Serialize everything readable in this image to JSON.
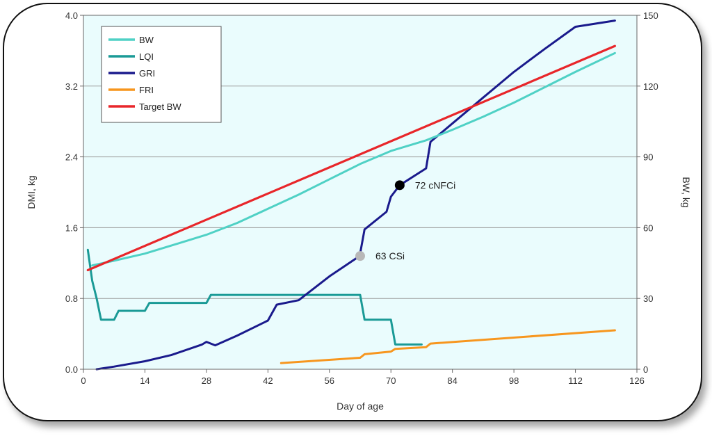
{
  "chart_data": {
    "type": "line",
    "title": "",
    "xlabel": "Day of age",
    "ylabel": "DMI, kg",
    "y2label": "BW, kg",
    "xlim": [
      0,
      126
    ],
    "ylim": [
      0,
      4.0
    ],
    "y2lim": [
      0,
      150
    ],
    "xticks": [
      "0",
      "14",
      "28",
      "42",
      "56",
      "70",
      "84",
      "98",
      "112",
      "126"
    ],
    "yticks": [
      "0.0",
      "0.8",
      "1.6",
      "2.4",
      "3.2",
      "4.0"
    ],
    "y2ticks": [
      "0",
      "30",
      "60",
      "90",
      "120",
      "150"
    ],
    "grid": "horizontal",
    "legend_position": "top-left",
    "series": [
      {
        "name": "BW",
        "axis": "right",
        "color": "#4fd1c5",
        "x": [
          2,
          7,
          14,
          21,
          28,
          35,
          42,
          49,
          56,
          63,
          70,
          78,
          84,
          91,
          98,
          105,
          112,
          121
        ],
        "y": [
          44,
          46,
          49,
          53,
          57,
          62,
          68,
          74,
          80.5,
          87,
          92.5,
          97,
          101.5,
          107,
          113,
          119.5,
          126,
          134
        ]
      },
      {
        "name": "LQI",
        "axis": "left",
        "color": "#1a9a96",
        "x": [
          1,
          2,
          3,
          4,
          7,
          8,
          14,
          15,
          28,
          29,
          63,
          64,
          70,
          71,
          77
        ],
        "y": [
          1.35,
          1.0,
          0.8,
          0.56,
          0.56,
          0.66,
          0.66,
          0.75,
          0.75,
          0.84,
          0.84,
          0.56,
          0.56,
          0.28,
          0.28
        ]
      },
      {
        "name": "GRI",
        "axis": "left",
        "color": "#1a1a8c",
        "x": [
          3,
          7,
          14,
          20,
          27,
          28,
          30,
          35,
          42,
          44,
          49,
          56,
          62,
          63,
          64,
          69,
          70,
          72,
          78,
          79,
          85,
          91,
          98,
          105,
          112,
          121
        ],
        "y": [
          0,
          0.03,
          0.09,
          0.16,
          0.28,
          0.31,
          0.27,
          0.38,
          0.55,
          0.73,
          0.78,
          1.05,
          1.25,
          1.31,
          1.58,
          1.78,
          1.95,
          2.08,
          2.27,
          2.57,
          2.82,
          3.07,
          3.36,
          3.62,
          3.87,
          3.94
        ]
      },
      {
        "name": "FRI",
        "axis": "left",
        "color": "#f7961e",
        "x": [
          45,
          63,
          64,
          70,
          71,
          78,
          79,
          121
        ],
        "y": [
          0.07,
          0.13,
          0.17,
          0.2,
          0.23,
          0.25,
          0.29,
          0.44
        ]
      },
      {
        "name": "Target BW",
        "axis": "right",
        "color": "#e8262a",
        "x": [
          1,
          121
        ],
        "y": [
          42,
          137
        ]
      }
    ],
    "annotations": [
      {
        "text": "63 CSi",
        "x": 63,
        "y": 1.28,
        "axis": "left",
        "marker_color": "#b8b8b8"
      },
      {
        "text": "72 cNFCi",
        "x": 72,
        "y": 2.08,
        "axis": "left",
        "marker_color": "#000000"
      }
    ],
    "plot_background": "#eafcfd"
  }
}
